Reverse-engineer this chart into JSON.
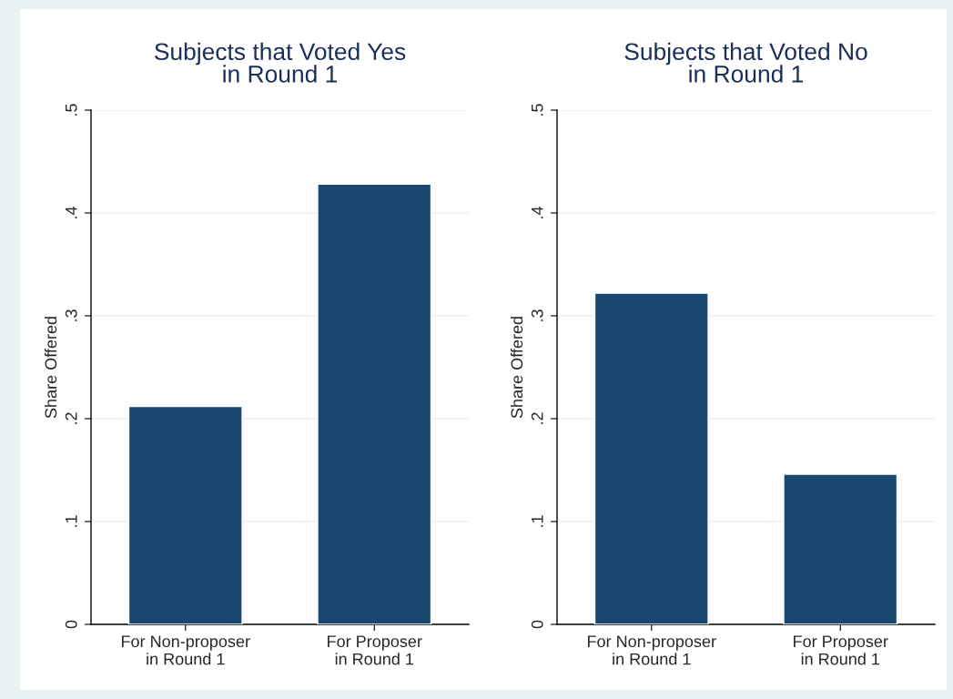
{
  "chart_data": [
    {
      "type": "bar",
      "title": "Subjects that Voted Yes\nin Round 1",
      "ylabel": "Share Offered",
      "categories": [
        "For Non-proposer\nin Round 1",
        "For Proposer\nin Round 1"
      ],
      "values": [
        0.212,
        0.428
      ],
      "color": "#1a476f",
      "ylim": [
        0,
        0.5
      ],
      "yticks": [
        {
          "value": 0,
          "label": "0"
        },
        {
          "value": 0.1,
          "label": ".1"
        },
        {
          "value": 0.2,
          "label": ".2"
        },
        {
          "value": 0.3,
          "label": ".3"
        },
        {
          "value": 0.4,
          "label": ".4"
        },
        {
          "value": 0.5,
          "label": ".5"
        }
      ],
      "grid": "y"
    },
    {
      "type": "bar",
      "title": "Subjects that Voted No\nin Round 1",
      "ylabel": "Share Offered",
      "categories": [
        "For Non-proposer\nin Round 1",
        "For Proposer\nin Round 1"
      ],
      "values": [
        0.322,
        0.146
      ],
      "color": "#1a476f",
      "ylim": [
        0,
        0.5
      ],
      "yticks": [
        {
          "value": 0,
          "label": "0"
        },
        {
          "value": 0.1,
          "label": ".1"
        },
        {
          "value": 0.2,
          "label": ".2"
        },
        {
          "value": 0.3,
          "label": ".3"
        },
        {
          "value": 0.4,
          "label": ".4"
        },
        {
          "value": 0.5,
          "label": ".5"
        }
      ],
      "grid": "y"
    }
  ]
}
